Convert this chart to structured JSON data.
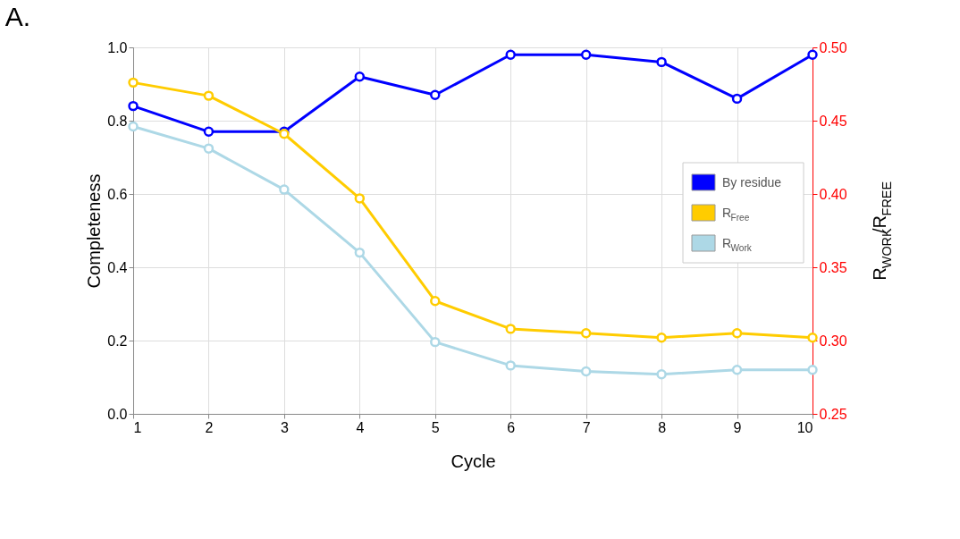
{
  "chart_data": {
    "type": "line",
    "title": "A.",
    "xlabel": "Cycle",
    "ylabel": "Completeness",
    "y2label": "R$_{WORK}$/R$_{FREE}$",
    "x": [
      1,
      2,
      3,
      4,
      5,
      6,
      7,
      8,
      9,
      10
    ],
    "series": [
      {
        "name": "By residue",
        "color": "#0000ff",
        "values": [
          0.84,
          0.77,
          0.77,
          0.92,
          0.87,
          0.98,
          0.98,
          0.96,
          0.86,
          0.98
        ]
      },
      {
        "name": "R$_{Free}$",
        "color": "#ffcc00",
        "axis": "y2",
        "values": [
          0.476,
          0.467,
          0.441,
          0.397,
          0.327,
          0.308,
          0.305,
          0.302,
          0.305,
          0.302
        ]
      },
      {
        "name": "R$_{Work}$",
        "color": "#add8e6",
        "axis": "y2",
        "values": [
          0.446,
          0.431,
          0.403,
          0.36,
          0.299,
          0.283,
          0.279,
          0.277,
          0.28,
          0.28
        ]
      }
    ],
    "xlim": [
      1,
      10
    ],
    "xticks": [
      1,
      2,
      3,
      4,
      5,
      6,
      7,
      8,
      9,
      10
    ],
    "ylim": [
      0,
      1
    ],
    "yticks": [
      {
        "value": 0,
        "label": "0.0"
      },
      0.2,
      0.4,
      0.6,
      0.8,
      {
        "value": 1,
        "label": "1.0"
      }
    ],
    "y2lim": [
      0.25,
      0.5
    ],
    "y2ticks": [
      0.25,
      {
        "value": 0.3,
        "label": "0.30"
      },
      0.35,
      {
        "value": 0.4,
        "label": "0.40"
      },
      0.45,
      {
        "value": 0.5,
        "label": "0.50"
      }
    ],
    "grid": true,
    "legend": "right",
    "marker": "circle",
    "line_style": "solid"
  }
}
